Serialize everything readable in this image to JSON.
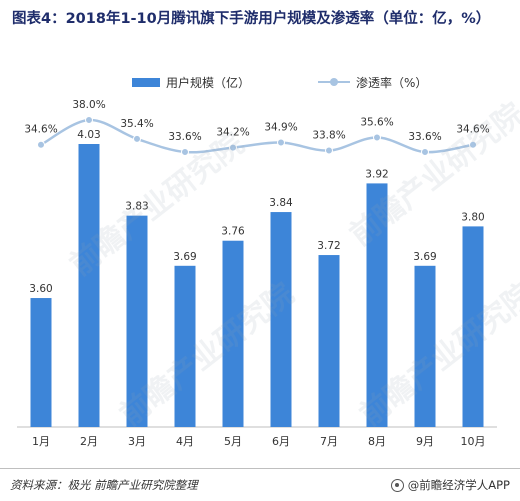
{
  "title": "图表4：2018年1-10月腾讯旗下手游用户规模及渗透率（单位：亿，%）",
  "legend": {
    "bar_label": "用户规模（亿）",
    "line_label": "渗透率（%）"
  },
  "colors": {
    "bar": "#3d85d8",
    "line": "#a8c4e2",
    "title": "#1f2d6b"
  },
  "chart_data": {
    "type": "bar",
    "categories": [
      "1月",
      "2月",
      "3月",
      "4月",
      "5月",
      "6月",
      "7月",
      "8月",
      "9月",
      "10月"
    ],
    "series": [
      {
        "name": "用户规模（亿）",
        "type": "bar",
        "values": [
          3.6,
          4.03,
          3.83,
          3.69,
          3.76,
          3.84,
          3.72,
          3.92,
          3.69,
          3.8
        ],
        "labels": [
          "3.60",
          "4.03",
          "3.83",
          "3.69",
          "3.76",
          "3.84",
          "3.72",
          "3.92",
          "3.69",
          "3.80"
        ]
      },
      {
        "name": "渗透率（%）",
        "type": "line",
        "values": [
          34.6,
          38.0,
          35.4,
          33.6,
          34.2,
          34.9,
          33.8,
          35.6,
          33.6,
          34.6
        ],
        "labels": [
          "34.6%",
          "38.0%",
          "35.4%",
          "33.6%",
          "34.2%",
          "34.9%",
          "33.8%",
          "35.6%",
          "33.6%",
          "34.6%"
        ]
      }
    ],
    "legend_position": "top-center",
    "grid": false
  },
  "footer": {
    "source": "资料来源：极光 前瞻产业研究院整理",
    "brand": "@前瞻经济学人APP"
  },
  "watermark_text": "前瞻产业研究院"
}
